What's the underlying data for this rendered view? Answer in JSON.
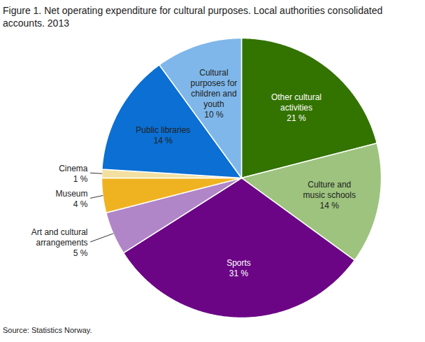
{
  "chart_data": {
    "type": "pie",
    "title": "Figure 1. Net operating expenditure for cultural purposes. Local authorities consolidated accounts. 2013",
    "caption": "Source: Statistics Norway.",
    "categories": [
      "Other cultural activities",
      "Culture and music schools",
      "Sports",
      "Art and cultural arrangements",
      "Museum",
      "Cinema",
      "Public libraries",
      "Cultural purposes for children and youth"
    ],
    "values": [
      21,
      14,
      31,
      5,
      4,
      1,
      14,
      10
    ],
    "value_labels": [
      "21 %",
      "14 %",
      "31 %",
      "5 %",
      "4 %",
      "1 %",
      "14 %",
      "10 %"
    ],
    "colors": [
      "#337300",
      "#9dc37e",
      "#6b0585",
      "#b186c8",
      "#efb321",
      "#f3e0a0",
      "#0b6fd3",
      "#7fb7ea"
    ],
    "data_labels": true
  }
}
